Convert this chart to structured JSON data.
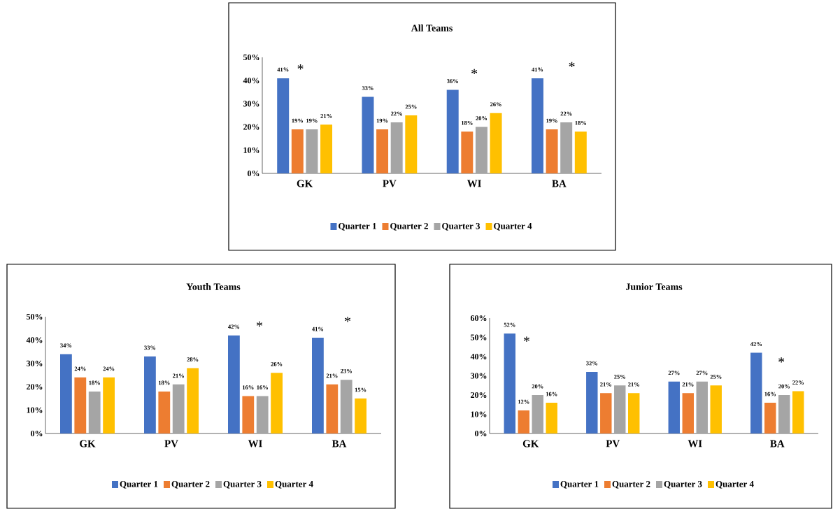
{
  "chart_data": [
    {
      "type": "bar",
      "title": "All Teams",
      "categories": [
        "GK",
        "PV",
        "WI",
        "BA"
      ],
      "legend": "bottom",
      "ylim": [
        0,
        50
      ],
      "yticks": [
        {
          "value": 0,
          "label": "0%"
        },
        {
          "value": 10,
          "label": "10%"
        },
        {
          "value": 20,
          "label": "20%"
        },
        {
          "value": 30,
          "label": "30%"
        },
        {
          "value": 40,
          "label": "40%"
        },
        {
          "value": 50,
          "label": "50%"
        }
      ],
      "series": [
        {
          "name": "Quarter 1",
          "color": "#4472c4",
          "values": [
            41,
            33,
            36,
            41
          ],
          "value_labels": [
            "41%",
            "33%",
            "36%",
            "41%"
          ]
        },
        {
          "name": "Quarter 2",
          "color": "#ed7d31",
          "values": [
            19,
            19,
            18,
            19
          ],
          "value_labels": [
            "19%",
            "19%",
            "18%",
            "19%"
          ]
        },
        {
          "name": "Quarter 3",
          "color": "#a5a5a5",
          "values": [
            19,
            22,
            20,
            22
          ],
          "value_labels": [
            "19%",
            "22%",
            "20%",
            "22%"
          ]
        },
        {
          "name": "Quarter 4",
          "color": "#ffc000",
          "values": [
            21,
            25,
            26,
            18
          ],
          "value_labels": [
            "21%",
            "25%",
            "26%",
            "18%"
          ]
        }
      ],
      "annotations": [
        "*",
        "*",
        "*"
      ]
    },
    {
      "type": "bar",
      "title": "Youth Teams",
      "categories": [
        "GK",
        "PV",
        "WI",
        "BA"
      ],
      "legend": "bottom",
      "ylim": [
        0,
        50
      ],
      "yticks": [
        {
          "value": 0,
          "label": "0%"
        },
        {
          "value": 10,
          "label": "10%"
        },
        {
          "value": 20,
          "label": "20%"
        },
        {
          "value": 30,
          "label": "30%"
        },
        {
          "value": 40,
          "label": "40%"
        },
        {
          "value": 50,
          "label": "50%"
        }
      ],
      "series": [
        {
          "name": "Quarter 1",
          "color": "#4472c4",
          "values": [
            34,
            33,
            42,
            41
          ],
          "value_labels": [
            "34%",
            "33%",
            "42%",
            "41%"
          ]
        },
        {
          "name": "Quarter 2",
          "color": "#ed7d31",
          "values": [
            24,
            18,
            16,
            21
          ],
          "value_labels": [
            "24%",
            "18%",
            "16%",
            "21%"
          ]
        },
        {
          "name": "Quarter 3",
          "color": "#a5a5a5",
          "values": [
            18,
            21,
            16,
            23
          ],
          "value_labels": [
            "18%",
            "21%",
            "16%",
            "23%"
          ]
        },
        {
          "name": "Quarter 4",
          "color": "#ffc000",
          "values": [
            24,
            28,
            26,
            15
          ],
          "value_labels": [
            "24%",
            "28%",
            "26%",
            "15%"
          ]
        }
      ],
      "annotations": [
        "*",
        "*"
      ]
    },
    {
      "type": "bar",
      "title": "Junior Teams",
      "categories": [
        "GK",
        "PV",
        "WI",
        "BA"
      ],
      "legend": "bottom",
      "ylim": [
        0,
        60
      ],
      "yticks": [
        {
          "value": 0,
          "label": "0%"
        },
        {
          "value": 10,
          "label": "10%"
        },
        {
          "value": 20,
          "label": "20%"
        },
        {
          "value": 30,
          "label": "30%"
        },
        {
          "value": 40,
          "label": "40%"
        },
        {
          "value": 50,
          "label": "50%"
        },
        {
          "value": 60,
          "label": "60%"
        }
      ],
      "series": [
        {
          "name": "Quarter 1",
          "color": "#4472c4",
          "values": [
            52,
            32,
            27,
            42
          ],
          "value_labels": [
            "52%",
            "32%",
            "27%",
            "42%"
          ]
        },
        {
          "name": "Quarter 2",
          "color": "#ed7d31",
          "values": [
            12,
            21,
            21,
            16
          ],
          "value_labels": [
            "12%",
            "21%",
            "21%",
            "16%"
          ]
        },
        {
          "name": "Quarter 3",
          "color": "#a5a5a5",
          "values": [
            20,
            25,
            27,
            20
          ],
          "value_labels": [
            "20%",
            "25%",
            "27%",
            "20%"
          ]
        },
        {
          "name": "Quarter 4",
          "color": "#ffc000",
          "values": [
            16,
            21,
            25,
            22
          ],
          "value_labels": [
            "16%",
            "21%",
            "25%",
            "22%"
          ]
        }
      ],
      "annotations": [
        "*",
        "*"
      ]
    }
  ]
}
